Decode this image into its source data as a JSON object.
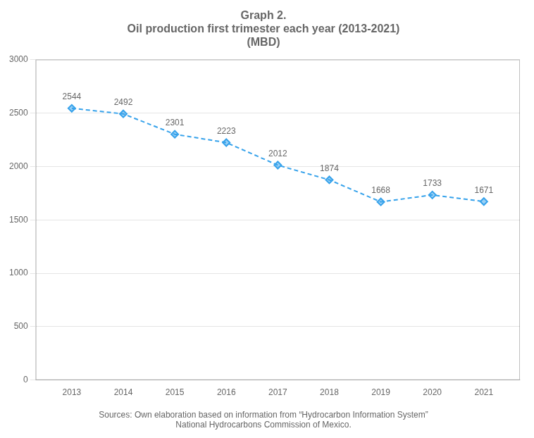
{
  "chart_data": {
    "type": "line",
    "title": [
      "Graph 2.",
      "Oil production first trimester each year (2013-2021)",
      "(MBD)"
    ],
    "source": [
      "Sources: Own elaboration based on information from “Hydrocarbon Information System”",
      "National Hydrocarbons Commission of Mexico."
    ],
    "x": [
      2013,
      2014,
      2015,
      2016,
      2017,
      2018,
      2019,
      2020,
      2021
    ],
    "values": [
      2544,
      2492,
      2301,
      2223,
      2012,
      1874,
      1668,
      1733,
      1671
    ],
    "xlim": [
      2012.3,
      2021.7
    ],
    "xticks": [
      2013,
      2014,
      2015,
      2016,
      2017,
      2018,
      2019,
      2020,
      2021
    ],
    "ylim": [
      0,
      3000
    ],
    "yticks": [
      0,
      500,
      1000,
      1500,
      2000,
      2500,
      3000
    ],
    "grid": true,
    "data_labels": true,
    "line_style": "dashed",
    "marker": "diamond"
  }
}
